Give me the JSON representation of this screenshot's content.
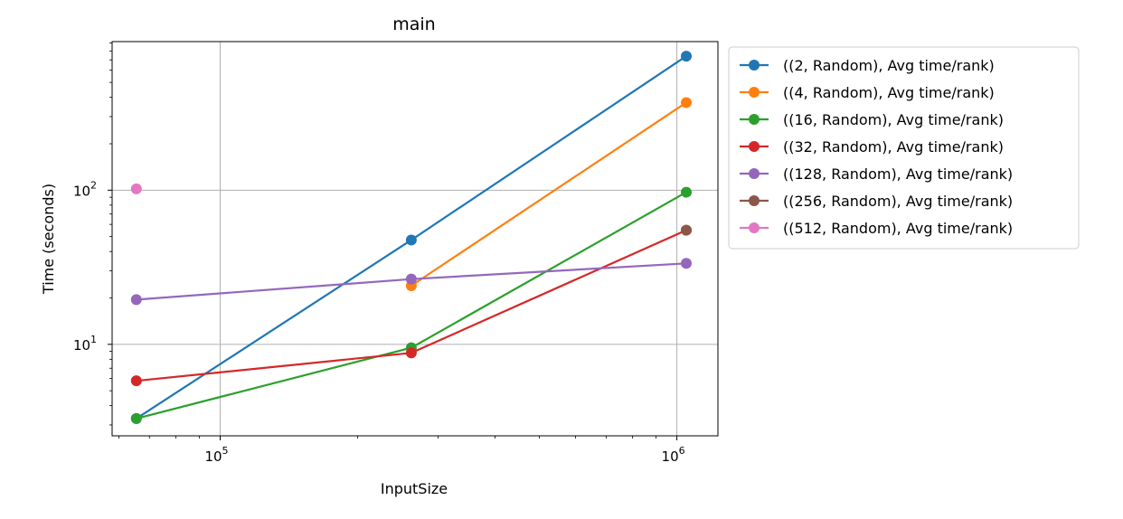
{
  "chart_data": {
    "type": "line",
    "title": "main",
    "xlabel": "InputSize",
    "ylabel": "Time (seconds)",
    "xscale": "log",
    "yscale": "log",
    "xlim": [
      58000,
      1230000
    ],
    "ylim": [
      2.55,
      920
    ],
    "grid": true,
    "legend_position": "outside right, top",
    "x_ticks": [
      {
        "value": 100000,
        "base": "10",
        "exp": "5"
      },
      {
        "value": 1000000,
        "base": "10",
        "exp": "6"
      }
    ],
    "y_ticks": [
      {
        "value": 10,
        "base": "10",
        "exp": "1"
      },
      {
        "value": 100,
        "base": "10",
        "exp": "2"
      }
    ],
    "series": [
      {
        "name": "((2, Random), Avg time/rank)",
        "color": "#1f77b4",
        "points": [
          [
            65536,
            3.3
          ],
          [
            262144,
            47.5
          ],
          [
            1048576,
            740
          ]
        ]
      },
      {
        "name": "((4, Random), Avg time/rank)",
        "color": "#ff7f0e",
        "points": [
          [
            262144,
            24
          ],
          [
            1048576,
            370
          ]
        ]
      },
      {
        "name": "((16, Random), Avg time/rank)",
        "color": "#2ca02c",
        "points": [
          [
            65536,
            3.3
          ],
          [
            262144,
            9.5
          ],
          [
            1048576,
            97
          ]
        ]
      },
      {
        "name": "((32, Random), Avg time/rank)",
        "color": "#d62728",
        "points": [
          [
            65536,
            5.8
          ],
          [
            262144,
            8.8
          ],
          [
            1048576,
            55
          ]
        ]
      },
      {
        "name": "((128, Random), Avg time/rank)",
        "color": "#9467bd",
        "points": [
          [
            65536,
            19.5
          ],
          [
            262144,
            26.5
          ],
          [
            1048576,
            33.5
          ]
        ]
      },
      {
        "name": "((256, Random), Avg time/rank)",
        "color": "#8c564b",
        "points": [
          [
            1048576,
            55
          ]
        ]
      },
      {
        "name": "((512, Random), Avg time/rank)",
        "color": "#e377c2",
        "points": [
          [
            65536,
            102
          ]
        ]
      }
    ]
  }
}
